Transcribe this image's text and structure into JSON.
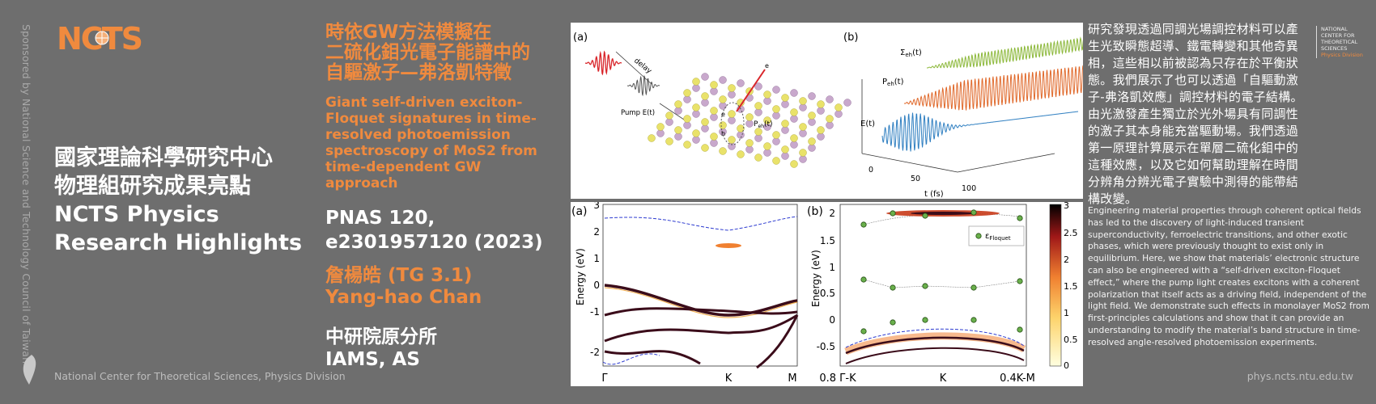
{
  "sponsor": "Sponsored by National Science and Technology Council of Taiwan",
  "logo_text": "NCTS",
  "footer_left": "National Center for Theoretical Sciences, Physics Division",
  "footer_right": "phys.ncts.ntu.edu.tw",
  "center_name": {
    "line1": "國家理論科學研究中心",
    "line2": "物理組研究成果亮點",
    "line3": "NCTS Physics",
    "line4": "Research Highlights"
  },
  "title_zh": {
    "line1": "時依GW方法模擬在",
    "line2": "二硫化鉬光電子能譜中的",
    "line3": "自驅激子—弗洛凱特徵"
  },
  "title_en": {
    "line1": "Giant self-driven exciton-",
    "line2": "Floquet signatures in time-",
    "line3": "resolved photoemission",
    "line4": "spectroscopy of MoS2 from",
    "line5": "time-dependent GW",
    "line6": "approach"
  },
  "journal": {
    "line1": "PNAS 120,",
    "line2": "e2301957120 (2023)"
  },
  "author": {
    "line1": "詹楊皓 (TG 3.1)",
    "line2": "Yang-hao Chan"
  },
  "affiliation": {
    "line1": "中研院原分所",
    "line2": "IAMS, AS"
  },
  "ncts_mini": [
    "NATIONAL",
    "CENTER FOR",
    "THEORETICAL",
    "SCIENCES",
    "Physics Division"
  ],
  "abstract_zh": "研究發現透過同調光場調控材料可以產生光致瞬態超導、鐵電轉變和其他奇異相，這些相以前被認為只存在於平衡狀態。我們展示了也可以透過「自驅動激子-弗洛凱效應」調控材料的電子結構。由光激發產生獨立於光外場具有同調性的激子其本身能充當驅動場。我們透過第一原理計算展示在單層二硫化鉬中的這種效應，以及它如何幫助理解在時間分辨角分辨光電子實驗中測得的能帶結構改變。",
  "abstract_en": "Engineering material properties through coherent optical fields has led to the discovery of light-induced transient superconductivity, ferroelectric transitions, and other exotic phases, which were previously thought to exist only in equilibrium. Here, we show that materials’ electronic structure can also be engineered with a “self-driven exciton-Floquet effect,” where the pump light creates excitons with a coherent polarization that itself acts as a driving field, independent of the light field. We demonstrate such effects in monolayer MoS2 from first-principles calculations and show that it can provide an understanding to modify the material’s band structure in time-resolved angle-resolved photoemission experiments.",
  "figure_top": {
    "panel_a_label": "(a)",
    "panel_b_label": "(b)",
    "delay": "delay",
    "pump": "Pump E(t)",
    "e_minus": "e",
    "e_label": "e",
    "h_label": "h",
    "p_label": "P",
    "p_sub": "eh",
    "p_tail": "(t)",
    "sigma_label": "Σ",
    "sigma_sub": "eh",
    "sigma_tail": "(t)",
    "peh_label": "P",
    "peh_sub": "eh",
    "peh_tail": "(t)",
    "et_label": "E(t)",
    "tick_0": "0",
    "tick_50": "50",
    "tick_100": "100",
    "xlabel": "t (fs)",
    "colors": {
      "sigma": "#8cb83a",
      "peh": "#e0692b",
      "et": "#2f7fc1"
    }
  },
  "figure_bottom": {
    "panel_a_label": "(a)",
    "panel_b_label": "(b)",
    "ylabel_a": "Energy (eV)",
    "ylabel_b": "Energy (eV)",
    "a_yticks": [
      "3",
      "2",
      "1",
      "0",
      "-1",
      "-2"
    ],
    "a_xticks": [
      "Γ",
      "K",
      "M"
    ],
    "b_yticks": [
      "2",
      "1.5",
      "1",
      "0.5",
      "0",
      "-0.5"
    ],
    "b_xticks": [
      "0.8 Γ-K",
      "K",
      "0.4K-M"
    ],
    "legend_label": "ε",
    "legend_sub": "Floquet",
    "colorbar_ticks": [
      "3",
      "2.5",
      "2",
      "1.5",
      "1",
      "0.5",
      "0"
    ]
  }
}
